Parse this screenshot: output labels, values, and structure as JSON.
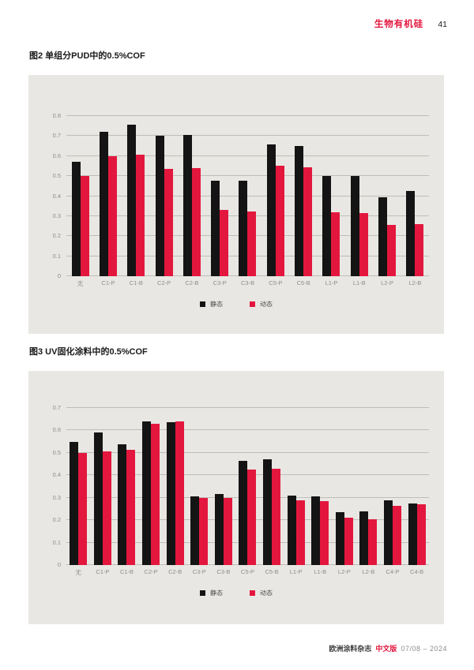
{
  "page": {
    "header": {
      "section_title": "生物有机硅",
      "page_number": "41"
    },
    "footer": {
      "magazine": "欧洲涂料杂志",
      "edition": "中文版",
      "issue": "07/08 – 2024"
    }
  },
  "colors": {
    "accent_red": "#e3173e",
    "bar_black": "#141414",
    "panel_bg": "#e9e7e3",
    "grid_line": "#bfbdb8",
    "tick_text": "#8f8d89"
  },
  "chart_data": [
    {
      "type": "bar",
      "title": "图2 单组分PUD中的0.5%COF",
      "categories": [
        "无",
        "C1-P",
        "C1-B",
        "C2-P",
        "C2-B",
        "C3-P",
        "C3-B",
        "C5-P",
        "C5-B",
        "L1-P",
        "L1-B",
        "L2-P",
        "L2-B"
      ],
      "series": [
        {
          "name": "静态",
          "color": "#141414",
          "values": [
            0.57,
            0.72,
            0.755,
            0.7,
            0.705,
            0.475,
            0.475,
            0.66,
            0.65,
            0.5,
            0.5,
            0.395,
            0.425
          ]
        },
        {
          "name": "动态",
          "color": "#e3173e",
          "values": [
            0.5,
            0.6,
            0.605,
            0.535,
            0.54,
            0.33,
            0.325,
            0.55,
            0.545,
            0.32,
            0.315,
            0.255,
            0.26
          ]
        }
      ],
      "xlabel": "",
      "ylabel": "",
      "ylim": [
        0,
        0.8
      ],
      "yticks": [
        "0.8",
        "0.7",
        "0.6",
        "0.5",
        "0.4",
        "0.3",
        "0.2",
        "0.1",
        "0"
      ],
      "grid": true,
      "legend_position": "bottom"
    },
    {
      "type": "bar",
      "title": "图3 UV固化涂料中的0.5%COF",
      "categories": [
        "无",
        "C1-P",
        "C1-B",
        "C2-P",
        "C2-B",
        "C3-P",
        "C3-B",
        "C5-P",
        "C5-B",
        "L1-P",
        "L1-B",
        "L2-P",
        "L2-B",
        "C4-P",
        "C4-B"
      ],
      "series": [
        {
          "name": "静态",
          "color": "#141414",
          "values": [
            0.55,
            0.59,
            0.54,
            0.64,
            0.635,
            0.305,
            0.315,
            0.465,
            0.47,
            0.31,
            0.305,
            0.235,
            0.24,
            0.29,
            0.275
          ]
        },
        {
          "name": "动态",
          "color": "#e3173e",
          "values": [
            0.5,
            0.505,
            0.515,
            0.63,
            0.64,
            0.3,
            0.3,
            0.425,
            0.43,
            0.29,
            0.285,
            0.21,
            0.205,
            0.265,
            0.27
          ]
        }
      ],
      "xlabel": "",
      "ylabel": "",
      "ylim": [
        0,
        0.7
      ],
      "yticks": [
        "0.7",
        "0.6",
        "0.5",
        "0.4",
        "0.3",
        "0.2",
        "0.1",
        "0"
      ],
      "grid": true,
      "legend_position": "bottom"
    }
  ]
}
